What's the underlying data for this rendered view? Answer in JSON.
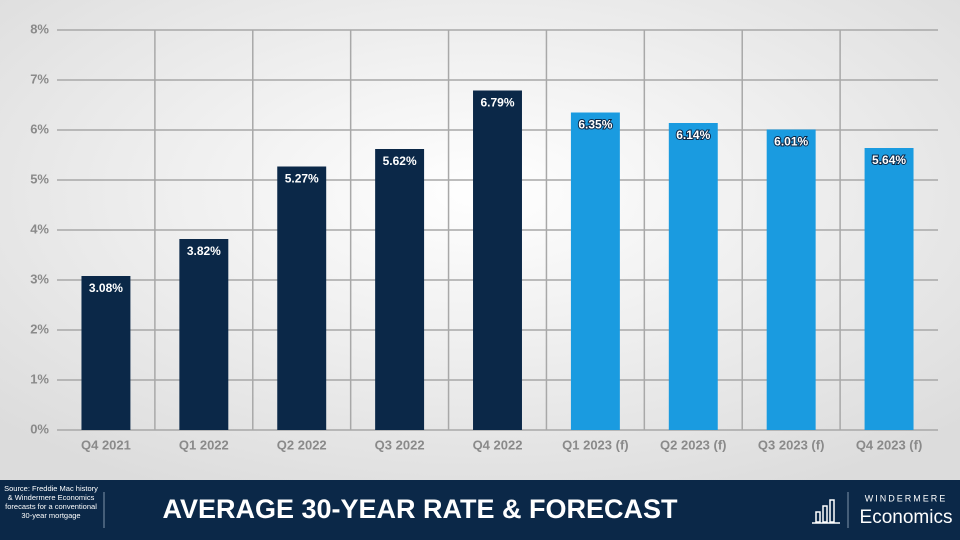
{
  "chart_data": {
    "type": "bar",
    "title": "AVERAGE 30-YEAR RATE & FORECAST",
    "source": "Source: Freddie Mac history & Windermere Economics forecasts for a conventional 30-year mortgage",
    "brand": "WINDERMERE",
    "brand_sub": "Economics",
    "categories": [
      "Q4 2021",
      "Q1 2022",
      "Q2 2022",
      "Q3 2022",
      "Q4 2022",
      "Q1 2023 (f)",
      "Q2 2023 (f)",
      "Q3 2023 (f)",
      "Q4 2023 (f)"
    ],
    "values": [
      3.08,
      3.82,
      5.27,
      5.62,
      6.79,
      6.35,
      6.14,
      6.01,
      5.64
    ],
    "value_labels": [
      "3.08%",
      "3.82%",
      "5.27%",
      "5.62%",
      "6.79%",
      "6.35%",
      "6.14%",
      "6.01%",
      "5.64%"
    ],
    "colors": [
      "#0b2848",
      "#0b2848",
      "#0b2848",
      "#0b2848",
      "#0b2848",
      "#1a9be0",
      "#1a9be0",
      "#1a9be0",
      "#1a9be0"
    ],
    "ylim": [
      0,
      8
    ],
    "yticks": [
      {
        "value": 0,
        "label": "0%"
      },
      {
        "value": 1,
        "label": "1%"
      },
      {
        "value": 2,
        "label": "2%"
      },
      {
        "value": 3,
        "label": "3%"
      },
      {
        "value": 4,
        "label": "4%"
      },
      {
        "value": 5,
        "label": "5%"
      },
      {
        "value": 6,
        "label": "6%"
      },
      {
        "value": 7,
        "label": "7%"
      },
      {
        "value": 8,
        "label": "8%"
      }
    ],
    "grid": true
  }
}
